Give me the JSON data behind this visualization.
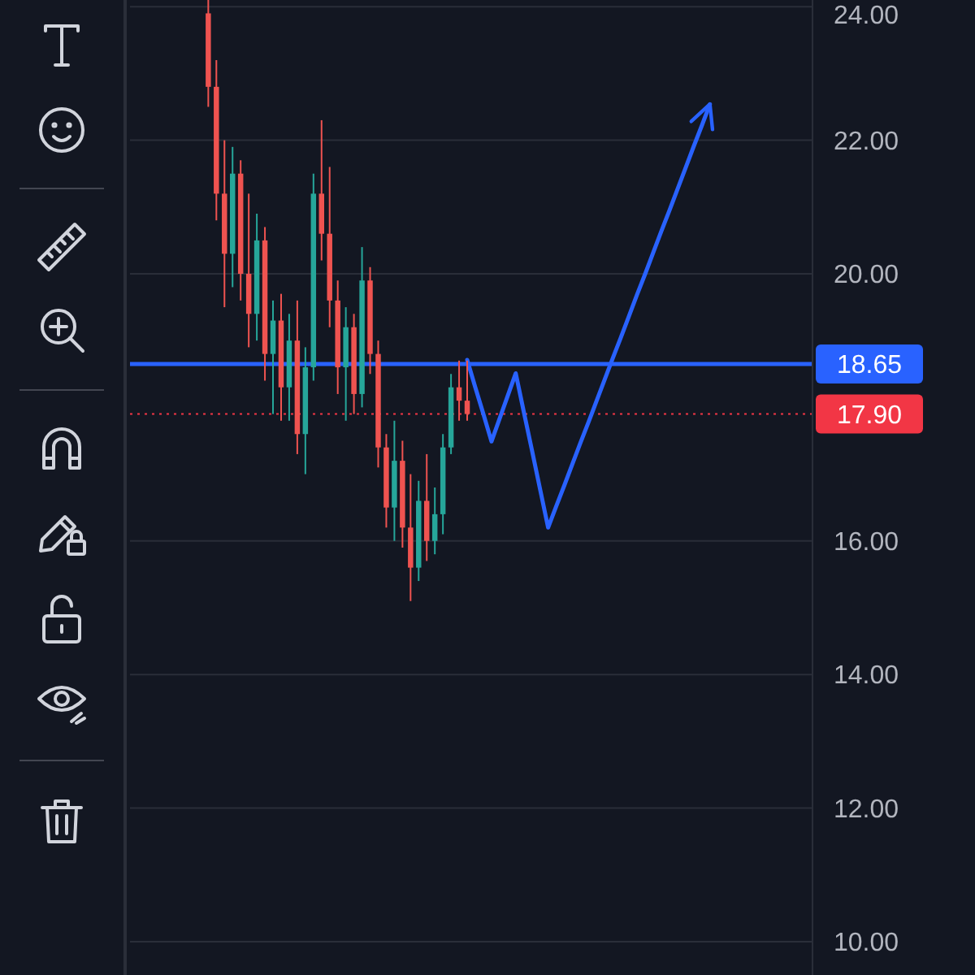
{
  "chart_data": {
    "type": "candlestick",
    "categories": [
      null,
      null,
      null,
      null,
      null,
      null,
      null,
      null,
      null,
      null,
      null,
      null,
      null,
      null,
      null,
      null,
      null,
      null,
      null,
      null,
      null,
      null,
      null,
      null,
      null,
      null,
      null,
      null,
      null,
      null,
      null,
      null,
      null,
      null,
      null,
      null,
      null,
      null,
      null,
      null,
      null,
      null,
      null,
      null,
      null,
      null,
      null,
      null,
      null,
      null,
      null,
      null,
      null,
      null,
      null,
      null,
      null,
      null,
      null,
      null,
      null,
      null,
      null,
      null,
      null,
      null,
      null,
      null,
      null,
      null,
      null,
      null,
      null,
      null,
      null,
      null,
      null,
      null,
      null,
      null,
      null,
      null,
      null,
      null
    ],
    "ohlc": [
      null,
      null,
      null,
      null,
      null,
      null,
      null,
      null,
      null,
      [
        23.9,
        24.1,
        22.5,
        22.8
      ],
      [
        22.8,
        23.2,
        20.8,
        21.2
      ],
      [
        21.2,
        22.0,
        19.5,
        20.3
      ],
      [
        20.3,
        21.9,
        19.8,
        21.5
      ],
      [
        21.5,
        21.7,
        19.6,
        20.0
      ],
      [
        20.0,
        21.2,
        18.9,
        19.4
      ],
      [
        19.4,
        20.9,
        19.0,
        20.5
      ],
      [
        20.5,
        20.7,
        18.4,
        18.8
      ],
      [
        18.8,
        19.6,
        17.9,
        19.3
      ],
      [
        19.3,
        19.7,
        17.8,
        18.3
      ],
      [
        18.3,
        19.4,
        17.8,
        19.0
      ],
      [
        19.0,
        19.6,
        17.3,
        17.6
      ],
      [
        17.6,
        18.9,
        17.0,
        18.6
      ],
      [
        18.6,
        21.5,
        18.4,
        21.2
      ],
      [
        21.2,
        22.3,
        20.2,
        20.6
      ],
      [
        20.6,
        21.6,
        19.2,
        19.6
      ],
      [
        19.6,
        19.9,
        18.2,
        18.6
      ],
      [
        18.6,
        19.5,
        17.8,
        19.2
      ],
      [
        19.2,
        19.4,
        17.9,
        18.2
      ],
      [
        18.2,
        20.4,
        18.0,
        19.9
      ],
      [
        19.9,
        20.1,
        18.5,
        18.8
      ],
      [
        18.8,
        19.0,
        17.1,
        17.4
      ],
      [
        17.4,
        17.6,
        16.2,
        16.5
      ],
      [
        16.5,
        17.8,
        16.0,
        17.2
      ],
      [
        17.2,
        17.5,
        15.9,
        16.2
      ],
      [
        16.2,
        17.0,
        15.1,
        15.6
      ],
      [
        15.6,
        16.9,
        15.4,
        16.6
      ],
      [
        16.6,
        17.3,
        15.7,
        16.0
      ],
      [
        16.0,
        16.8,
        15.8,
        16.4
      ],
      [
        16.4,
        17.6,
        16.1,
        17.4
      ],
      [
        17.4,
        18.5,
        17.3,
        18.3
      ],
      [
        18.3,
        18.7,
        17.8,
        18.1
      ],
      [
        18.1,
        18.7,
        17.8,
        17.9
      ],
      null,
      null,
      null,
      null,
      null,
      null,
      null,
      null,
      null,
      null,
      null,
      null,
      null,
      null,
      null,
      null,
      null,
      null,
      null,
      null,
      null,
      null,
      null,
      null,
      null,
      null,
      null,
      null,
      null,
      null,
      null,
      null,
      null,
      null,
      null,
      null,
      null,
      null,
      null,
      null,
      null,
      null
    ],
    "series": [
      {
        "type": "line",
        "color": "#2962ff",
        "values": [
          null,
          null,
          null,
          null,
          null,
          null,
          null,
          null,
          null,
          null,
          null,
          null,
          null,
          null,
          null,
          null,
          null,
          null,
          null,
          null,
          null,
          null,
          null,
          null,
          null,
          null,
          null,
          null,
          null,
          null,
          null,
          null,
          null,
          null,
          null,
          null,
          null,
          null,
          null,
          null,
          null,
          18.71,
          18.3,
          17.9,
          17.49,
          17.83,
          18.17,
          18.51,
          17.93,
          17.36,
          16.78,
          16.2,
          16.52,
          16.83,
          17.15,
          17.47,
          17.78,
          18.1,
          18.42,
          18.74,
          19.05,
          19.37,
          19.69,
          20.0,
          20.32,
          20.64,
          20.95,
          21.27,
          21.59,
          21.91,
          22.22,
          22.54,
          null,
          null,
          null,
          null,
          null,
          null,
          null,
          null,
          null,
          null,
          null,
          null
        ]
      }
    ],
    "ylim": [
      9.5,
      24.1
    ],
    "yticks": [
      {
        "value": 10,
        "label": "10.00"
      },
      {
        "value": 12,
        "label": "12.00"
      },
      {
        "value": 14,
        "label": "14.00"
      },
      {
        "value": 16,
        "label": "16.00"
      },
      {
        "value": 20,
        "label": "20.00"
      },
      {
        "value": 22,
        "label": "22.00"
      },
      {
        "value": 24,
        "label": "24.00"
      }
    ],
    "ref_lines": [
      {
        "axis": "y",
        "value": 18.65,
        "label": "18.65",
        "color": "#2962ff",
        "line_style": "solid"
      },
      {
        "axis": "y",
        "value": 17.9,
        "label": "17.90",
        "color": "#f23645",
        "line_style": "dotted"
      }
    ],
    "grid": "y",
    "tick_labels": "y"
  }
}
